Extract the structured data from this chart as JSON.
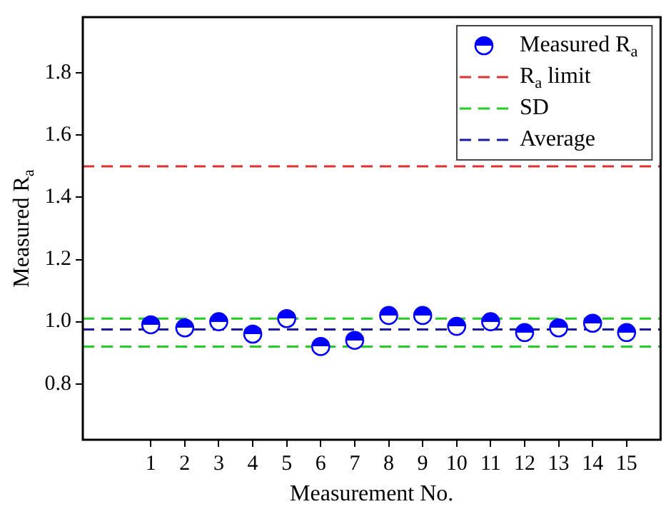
{
  "chart_data": {
    "type": "scatter",
    "ylabel": "Measured R$_{a}$",
    "xlabel": "Measurement No.",
    "x": [
      1,
      2,
      3,
      4,
      5,
      6,
      7,
      8,
      9,
      10,
      11,
      12,
      13,
      14,
      15
    ],
    "series": [
      {
        "name": "Measured R$_{a}$",
        "color": "#0000ff",
        "values": [
          0.99,
          0.98,
          1.0,
          0.96,
          1.01,
          0.92,
          0.94,
          1.02,
          1.02,
          0.985,
          1.0,
          0.965,
          0.98,
          0.995,
          0.965
        ]
      }
    ],
    "xlim": [
      -1,
      16
    ],
    "xticks": [
      1,
      2,
      3,
      4,
      5,
      6,
      7,
      8,
      9,
      10,
      11,
      12,
      13,
      14,
      15
    ],
    "ylim": [
      0.62,
      1.98
    ],
    "yticks": [
      0.8,
      {
        "value": 1.0,
        "label": "1.0"
      },
      1.2,
      1.4,
      1.6,
      1.8
    ],
    "ref_lines": [
      {
        "axis": "y",
        "value": 1.5,
        "label": "R$_{a}$ limit",
        "color": "#e03030",
        "line_style": "dashed"
      },
      {
        "axis": "y",
        "value": 1.01,
        "label": "SD",
        "color": "#22cc22",
        "line_style": "dashed"
      },
      {
        "axis": "y",
        "value": 0.92,
        "color": "#22cc22",
        "line_style": "dashed"
      },
      {
        "axis": "y",
        "value": 0.975,
        "label": "Average",
        "color": "#1a1aa0",
        "line_style": "dashed"
      }
    ],
    "marker": "circle",
    "grid": false,
    "legend": "top right"
  }
}
